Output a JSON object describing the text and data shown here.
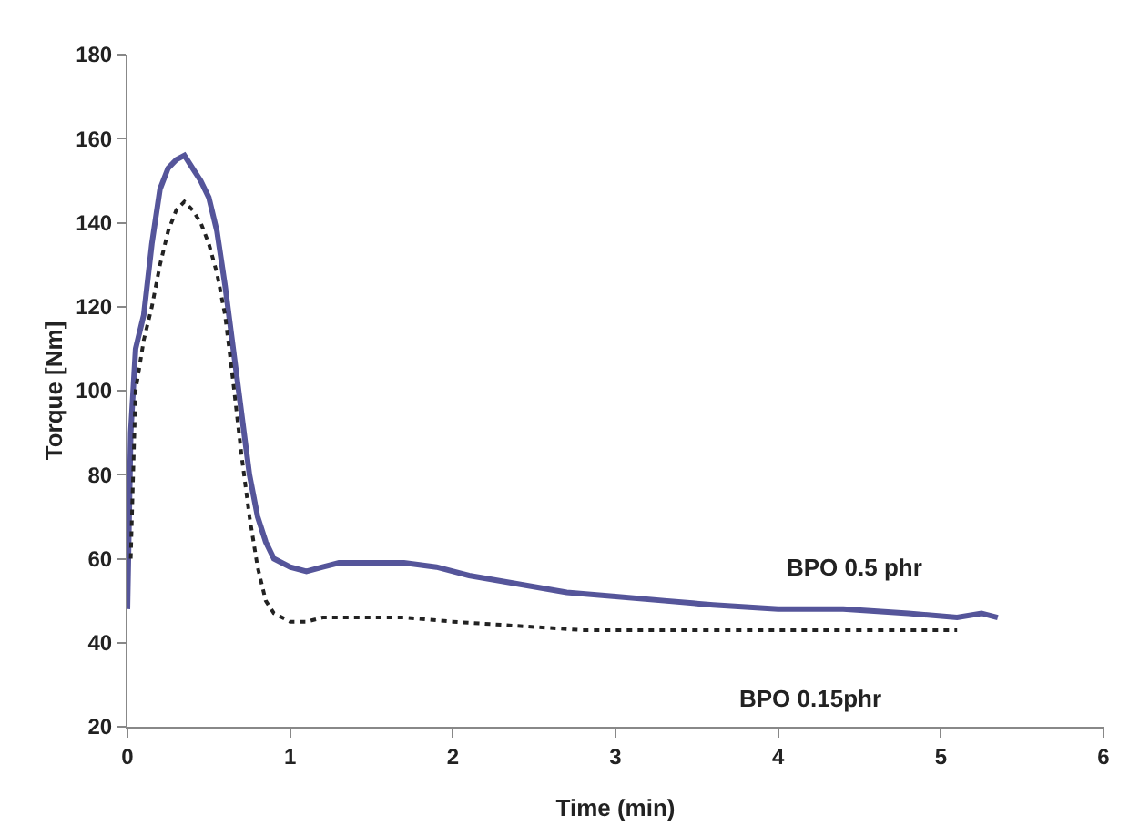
{
  "chart_data": {
    "type": "line",
    "xlabel": "Time (min)",
    "ylabel": "Torque [Nm]",
    "xlim": [
      0,
      6
    ],
    "xticks": [
      0,
      1,
      2,
      3,
      4,
      5,
      6
    ],
    "ylim": [
      20,
      180
    ],
    "yticks": [
      20,
      40,
      60,
      80,
      100,
      120,
      140,
      160,
      180
    ],
    "grid": false,
    "legend": false,
    "marker": "none",
    "series": [
      {
        "name": "BPO 0.5 phr",
        "color": "#55559a",
        "line_style": "solid",
        "x": [
          0,
          0.02,
          0.05,
          0.1,
          0.15,
          0.2,
          0.25,
          0.3,
          0.35,
          0.4,
          0.45,
          0.5,
          0.55,
          0.6,
          0.65,
          0.7,
          0.75,
          0.8,
          0.85,
          0.9,
          1.0,
          1.1,
          1.2,
          1.3,
          1.5,
          1.7,
          1.9,
          2.1,
          2.4,
          2.7,
          3.0,
          3.3,
          3.6,
          4.0,
          4.4,
          4.8,
          5.1,
          5.25,
          5.35
        ],
        "values": [
          48,
          90,
          110,
          118,
          135,
          148,
          153,
          155,
          156,
          153,
          150,
          146,
          138,
          125,
          110,
          95,
          80,
          70,
          64,
          60,
          58,
          57,
          58,
          59,
          59,
          59,
          58,
          56,
          54,
          52,
          51,
          50,
          49,
          48,
          48,
          47,
          46,
          47,
          46
        ]
      },
      {
        "name": "BPO 0.15phr",
        "color": "#222222",
        "line_style": "dotted",
        "x": [
          0.02,
          0.05,
          0.1,
          0.15,
          0.2,
          0.25,
          0.3,
          0.35,
          0.4,
          0.45,
          0.5,
          0.55,
          0.6,
          0.65,
          0.7,
          0.75,
          0.8,
          0.85,
          0.9,
          1.0,
          1.1,
          1.2,
          1.4,
          1.7,
          2.0,
          2.4,
          2.8,
          3.5,
          4.5,
          5.1
        ],
        "values": [
          60,
          100,
          112,
          120,
          130,
          138,
          143,
          145,
          143,
          140,
          135,
          128,
          118,
          102,
          85,
          70,
          58,
          50,
          47,
          45,
          45,
          46,
          46,
          46,
          45,
          44,
          43,
          43,
          43,
          43
        ]
      }
    ]
  }
}
